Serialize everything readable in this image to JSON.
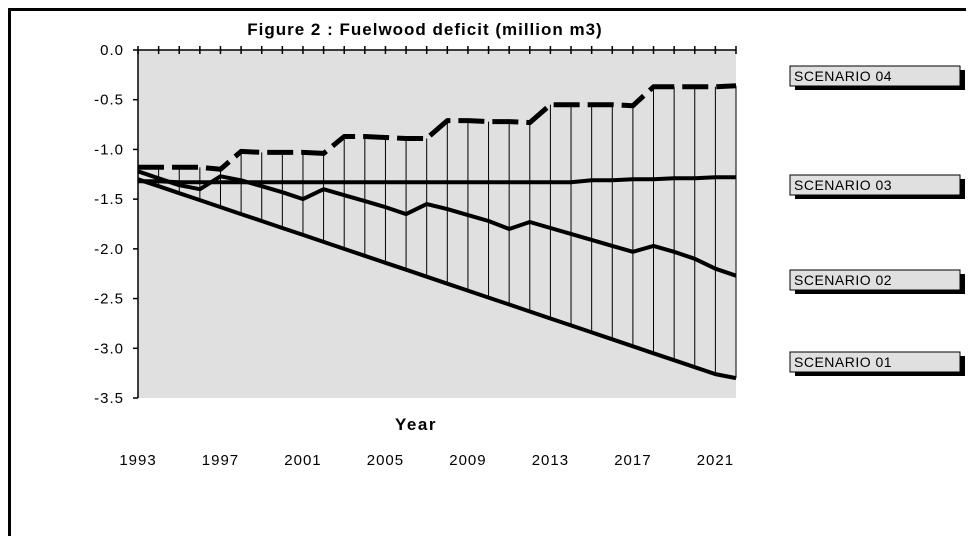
{
  "chart_data": {
    "type": "line",
    "title": "Figure 2 : Fuelwood deficit (million m3)",
    "xlabel": "Year",
    "ylabel": "",
    "ylim": [
      -3.5,
      0.0
    ],
    "xlim": [
      1993,
      2022
    ],
    "yticks": [
      "0.0",
      "-0.5",
      "-1.0",
      "-1.5",
      "-2.0",
      "-2.5",
      "-3.0",
      "-3.5"
    ],
    "xticks": [
      "1993",
      "1997",
      "2001",
      "2005",
      "2009",
      "2013",
      "2017",
      "2021"
    ],
    "grid": false,
    "legend_position": "right",
    "plot_background": "#e0e0e0",
    "x": [
      1993,
      1994,
      1995,
      1996,
      1997,
      1998,
      1999,
      2000,
      2001,
      2002,
      2003,
      2004,
      2005,
      2006,
      2007,
      2008,
      2009,
      2010,
      2011,
      2012,
      2013,
      2014,
      2015,
      2016,
      2017,
      2018,
      2019,
      2020,
      2021,
      2022
    ],
    "series": [
      {
        "name": "SCENARIO 04",
        "style": "dashed",
        "values": [
          -1.18,
          -1.18,
          -1.18,
          -1.18,
          -1.2,
          -1.02,
          -1.03,
          -1.03,
          -1.03,
          -1.04,
          -0.87,
          -0.87,
          -0.88,
          -0.89,
          -0.89,
          -0.71,
          -0.71,
          -0.72,
          -0.72,
          -0.73,
          -0.55,
          -0.55,
          -0.55,
          -0.55,
          -0.56,
          -0.37,
          -0.37,
          -0.37,
          -0.37,
          -0.36
        ]
      },
      {
        "name": "SCENARIO 03",
        "style": "solid",
        "values": [
          -1.32,
          -1.32,
          -1.33,
          -1.33,
          -1.33,
          -1.33,
          -1.33,
          -1.33,
          -1.33,
          -1.33,
          -1.33,
          -1.33,
          -1.33,
          -1.33,
          -1.33,
          -1.33,
          -1.33,
          -1.33,
          -1.33,
          -1.33,
          -1.33,
          -1.33,
          -1.31,
          -1.31,
          -1.3,
          -1.3,
          -1.29,
          -1.29,
          -1.28,
          -1.28
        ]
      },
      {
        "name": "SCENARIO 02",
        "style": "solid",
        "values": [
          -1.22,
          -1.29,
          -1.36,
          -1.4,
          -1.27,
          -1.31,
          -1.37,
          -1.43,
          -1.5,
          -1.4,
          -1.46,
          -1.52,
          -1.58,
          -1.65,
          -1.55,
          -1.6,
          -1.66,
          -1.72,
          -1.8,
          -1.73,
          -1.79,
          -1.85,
          -1.91,
          -1.97,
          -2.03,
          -1.97,
          -2.03,
          -2.1,
          -2.2,
          -2.27
        ]
      },
      {
        "name": "SCENARIO 01",
        "style": "solid",
        "values": [
          -1.3,
          -1.37,
          -1.44,
          -1.51,
          -1.58,
          -1.65,
          -1.72,
          -1.79,
          -1.86,
          -1.93,
          -2.0,
          -2.07,
          -2.14,
          -2.21,
          -2.28,
          -2.35,
          -2.42,
          -2.49,
          -2.56,
          -2.63,
          -2.7,
          -2.77,
          -2.84,
          -2.91,
          -2.98,
          -3.05,
          -3.12,
          -3.19,
          -3.26,
          -3.3
        ]
      }
    ]
  }
}
